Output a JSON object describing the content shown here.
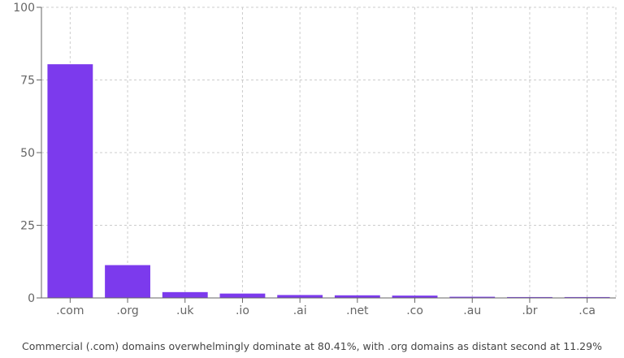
{
  "chart_data": {
    "type": "bar",
    "categories": [
      ".com",
      ".org",
      ".uk",
      ".io",
      ".ai",
      ".net",
      ".co",
      ".au",
      ".br",
      ".ca"
    ],
    "values": [
      80.41,
      11.29,
      2.0,
      1.5,
      1.0,
      0.9,
      0.8,
      0.4,
      0.3,
      0.3
    ],
    "ylim": [
      0,
      100
    ],
    "yticks": [
      0,
      25,
      50,
      75,
      100
    ],
    "grid": true,
    "bar_color": "#7c3aed",
    "grid_color": "#cccccc",
    "caption": "Commercial (.com) domains overwhelmingly dominate at 80.41%, with .org domains as distant second at 11.29%"
  }
}
